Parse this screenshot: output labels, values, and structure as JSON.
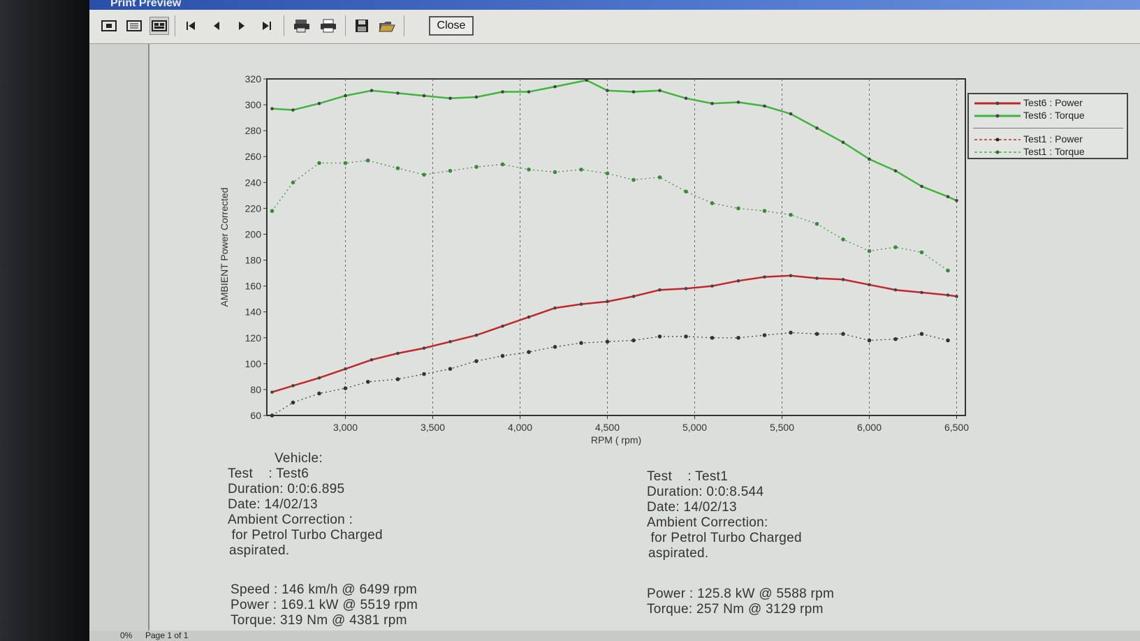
{
  "window": {
    "title": "Print Preview"
  },
  "toolbar": {
    "close_label": "Close"
  },
  "status": {
    "zoom": "0%",
    "page": "Page 1 of 1"
  },
  "left_info": {
    "vehicle": "Vehicle:",
    "test": "Test    : Test6",
    "duration": "Duration: 0:0:6.895",
    "date": "Date: 14/02/13",
    "ambient": "Ambient Correction :",
    "fuel": " for Petrol Turbo Charged",
    "aspirated": "aspirated.",
    "speed": "Speed : 146 km/h @ 6499 rpm",
    "power": "Power : 169.1 kW @ 5519 rpm",
    "torque": "Torque: 319 Nm @ 4381 rpm"
  },
  "right_info": {
    "test": "Test    : Test1",
    "duration": "Duration: 0:0:8.544",
    "date": "Date: 14/02/13",
    "ambient": "Ambient Correction:",
    "fuel": " for Petrol Turbo Charged",
    "aspirated": "aspirated.",
    "power": "Power : 125.8 kW @ 5588 rpm",
    "torque": "Torque: 257 Nm @ 3129 rpm"
  },
  "chart_data": {
    "type": "line",
    "xlabel": "RPM ( rpm)",
    "ylabel": "AMBIENT Power Corrected",
    "xlim": [
      2550,
      6550
    ],
    "ylim": [
      60,
      320
    ],
    "xticks": [
      3000,
      3500,
      4000,
      4500,
      5000,
      5500,
      6000,
      6500
    ],
    "xtick_labels": [
      "3,000",
      "3,500",
      "4,000",
      "4,500",
      "5,000",
      "5,500",
      "6,000",
      "6,500"
    ],
    "yticks": [
      60,
      80,
      100,
      120,
      140,
      160,
      180,
      200,
      220,
      240,
      260,
      280,
      300,
      320
    ],
    "grid": "vertical dotted",
    "legend": "top-right",
    "series": [
      {
        "name": "Test6 : Power",
        "color": "#c0282a",
        "style": "solid",
        "x": [
          2580,
          2700,
          2850,
          3000,
          3150,
          3300,
          3450,
          3600,
          3750,
          3900,
          4050,
          4200,
          4350,
          4500,
          4650,
          4800,
          4950,
          5100,
          5250,
          5400,
          5550,
          5700,
          5850,
          6000,
          6150,
          6300,
          6450,
          6500
        ],
        "y": [
          78,
          83,
          89,
          96,
          103,
          108,
          112,
          117,
          122,
          129,
          136,
          143,
          146,
          148,
          152,
          157,
          158,
          160,
          164,
          167,
          168,
          166,
          165,
          161,
          157,
          155,
          153,
          152
        ]
      },
      {
        "name": "Test6 : Torque",
        "color": "#3fb53a",
        "style": "solid",
        "x": [
          2580,
          2700,
          2850,
          3000,
          3150,
          3300,
          3450,
          3600,
          3750,
          3900,
          4050,
          4200,
          4381,
          4500,
          4650,
          4800,
          4950,
          5100,
          5250,
          5400,
          5550,
          5700,
          5850,
          6000,
          6150,
          6300,
          6450,
          6500
        ],
        "y": [
          297,
          296,
          301,
          307,
          311,
          309,
          307,
          305,
          306,
          310,
          310,
          314,
          319,
          311,
          310,
          311,
          305,
          301,
          302,
          299,
          293,
          282,
          271,
          258,
          249,
          237,
          229,
          226
        ]
      },
      {
        "name": "Test1 : Power",
        "color": "#333333",
        "style": "dotted",
        "x": [
          2580,
          2700,
          2850,
          3000,
          3129,
          3300,
          3450,
          3600,
          3750,
          3900,
          4050,
          4200,
          4350,
          4500,
          4650,
          4800,
          4950,
          5100,
          5250,
          5400,
          5550,
          5700,
          5850,
          6000,
          6150,
          6300,
          6450
        ],
        "y": [
          60,
          70,
          77,
          81,
          86,
          88,
          92,
          96,
          102,
          106,
          109,
          113,
          116,
          117,
          118,
          121,
          121,
          120,
          120,
          122,
          124,
          123,
          123,
          118,
          119,
          123,
          118
        ]
      },
      {
        "name": "Test1 : Torque",
        "color": "#3a8a3a",
        "style": "dotted",
        "x": [
          2580,
          2700,
          2850,
          3000,
          3129,
          3300,
          3450,
          3600,
          3750,
          3900,
          4050,
          4200,
          4350,
          4500,
          4650,
          4800,
          4950,
          5100,
          5250,
          5400,
          5550,
          5700,
          5850,
          6000,
          6150,
          6300,
          6450
        ],
        "y": [
          218,
          240,
          255,
          255,
          257,
          251,
          246,
          249,
          252,
          254,
          250,
          248,
          250,
          247,
          242,
          244,
          233,
          224,
          220,
          218,
          215,
          208,
          196,
          187,
          190,
          186,
          172
        ]
      }
    ]
  }
}
